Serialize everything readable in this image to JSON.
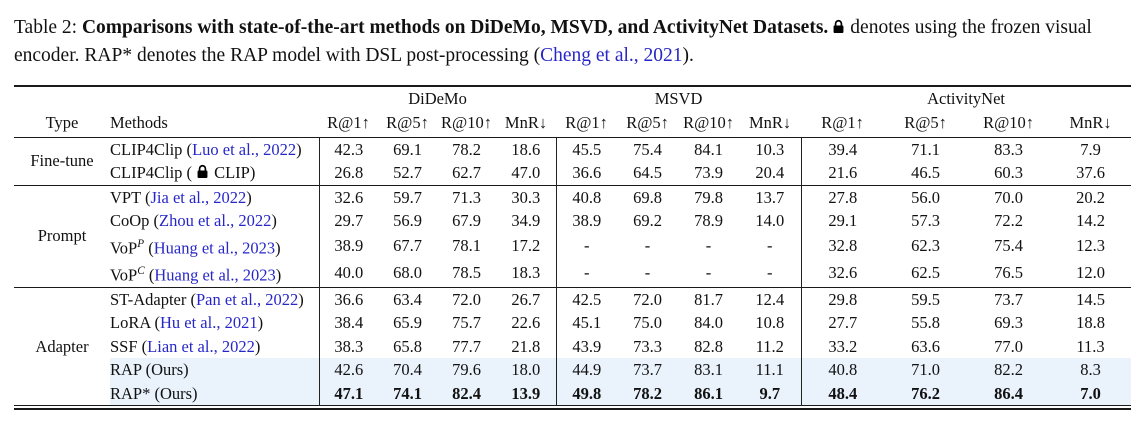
{
  "colors": {
    "citation": "#2727c8",
    "highlight_row": "#eaf2fc",
    "rule": "#1a1a1a",
    "text": "#111111"
  },
  "caption": {
    "segments": [
      {
        "t": "text",
        "v": "Table 2: "
      },
      {
        "t": "bold",
        "v": "Comparisons with state-of-the-art methods on DiDeMo, MSVD, and ActivityNet Datasets."
      },
      {
        "t": "lock"
      },
      {
        "t": "text",
        "v": "denotes using the frozen visual encoder. RAP* denotes the RAP model with DSL post-processing ("
      },
      {
        "t": "cite",
        "v": "Cheng et al., 2021"
      },
      {
        "t": "text",
        "v": ")."
      }
    ]
  },
  "table": {
    "datasets": [
      "DiDeMo",
      "MSVD",
      "ActivityNet"
    ],
    "col_type": "Type",
    "col_methods": "Methods",
    "metrics": [
      "R@1↑",
      "R@5↑",
      "R@10↑",
      "MnR↓",
      "R@1↑",
      "R@5↑",
      "R@10↑",
      "MnR↓",
      "R@1↑",
      "R@5↑",
      "R@10↑",
      "MnR↓"
    ],
    "groups": [
      {
        "type": "Fine-tune",
        "rows": [
          {
            "method": [
              {
                "t": "text",
                "v": "CLIP4Clip ("
              },
              {
                "t": "cite",
                "v": "Luo et al., 2022"
              },
              {
                "t": "text",
                "v": ")"
              }
            ],
            "values": [
              "42.3",
              "69.1",
              "78.2",
              "18.6",
              "45.5",
              "75.4",
              "84.1",
              "10.3",
              "39.4",
              "71.1",
              "83.3",
              "7.9"
            ]
          },
          {
            "method": [
              {
                "t": "text",
                "v": "CLIP4Clip ("
              },
              {
                "t": "lock"
              },
              {
                "t": "text",
                "v": "CLIP)"
              }
            ],
            "values": [
              "26.8",
              "52.7",
              "62.7",
              "47.0",
              "36.6",
              "64.5",
              "73.9",
              "20.4",
              "21.6",
              "46.5",
              "60.3",
              "37.6"
            ]
          }
        ]
      },
      {
        "type": "Prompt",
        "rows": [
          {
            "method": [
              {
                "t": "text",
                "v": "VPT ("
              },
              {
                "t": "cite",
                "v": "Jia et al., 2022"
              },
              {
                "t": "text",
                "v": ")"
              }
            ],
            "values": [
              "32.6",
              "59.7",
              "71.3",
              "30.3",
              "40.8",
              "69.8",
              "79.8",
              "13.7",
              "27.8",
              "56.0",
              "70.0",
              "20.2"
            ]
          },
          {
            "method": [
              {
                "t": "text",
                "v": "CoOp ("
              },
              {
                "t": "cite",
                "v": "Zhou et al., 2022"
              },
              {
                "t": "text",
                "v": ")"
              }
            ],
            "values": [
              "29.7",
              "56.9",
              "67.9",
              "34.9",
              "38.9",
              "69.2",
              "78.9",
              "14.0",
              "29.1",
              "57.3",
              "72.2",
              "14.2"
            ]
          },
          {
            "method": [
              {
                "t": "text",
                "v": "VoP"
              },
              {
                "t": "sup",
                "v": "P"
              },
              {
                "t": "text",
                "v": " ("
              },
              {
                "t": "cite",
                "v": "Huang et al., 2023"
              },
              {
                "t": "text",
                "v": ")"
              }
            ],
            "values": [
              "38.9",
              "67.7",
              "78.1",
              "17.2",
              "-",
              "-",
              "-",
              "-",
              "32.8",
              "62.3",
              "75.4",
              "12.3"
            ]
          },
          {
            "method": [
              {
                "t": "text",
                "v": "VoP"
              },
              {
                "t": "sup",
                "v": "C"
              },
              {
                "t": "text",
                "v": " ("
              },
              {
                "t": "cite",
                "v": "Huang et al., 2023"
              },
              {
                "t": "text",
                "v": ")"
              }
            ],
            "values": [
              "40.0",
              "68.0",
              "78.5",
              "18.3",
              "-",
              "-",
              "-",
              "-",
              "32.6",
              "62.5",
              "76.5",
              "12.0"
            ]
          }
        ]
      },
      {
        "type": "Adapter",
        "rows": [
          {
            "method": [
              {
                "t": "text",
                "v": "ST-Adapter ("
              },
              {
                "t": "cite",
                "v": "Pan et al., 2022"
              },
              {
                "t": "text",
                "v": ")"
              }
            ],
            "values": [
              "36.6",
              "63.4",
              "72.0",
              "26.7",
              "42.5",
              "72.0",
              "81.7",
              "12.4",
              "29.8",
              "59.5",
              "73.7",
              "14.5"
            ]
          },
          {
            "method": [
              {
                "t": "text",
                "v": "LoRA ("
              },
              {
                "t": "cite",
                "v": "Hu et al., 2021"
              },
              {
                "t": "text",
                "v": ")"
              }
            ],
            "values": [
              "38.4",
              "65.9",
              "75.7",
              "22.6",
              "45.1",
              "75.0",
              "84.0",
              "10.8",
              "27.7",
              "55.8",
              "69.3",
              "18.8"
            ]
          },
          {
            "method": [
              {
                "t": "text",
                "v": "SSF ("
              },
              {
                "t": "cite",
                "v": "Lian et al., 2022"
              },
              {
                "t": "text",
                "v": ")"
              }
            ],
            "values": [
              "38.3",
              "65.8",
              "77.7",
              "21.8",
              "43.9",
              "73.3",
              "82.8",
              "11.2",
              "33.2",
              "63.6",
              "77.0",
              "11.3"
            ]
          },
          {
            "method": [
              {
                "t": "text",
                "v": "RAP (Ours)"
              }
            ],
            "highlight": true,
            "values": [
              "42.6",
              "70.4",
              "79.6",
              "18.0",
              "44.9",
              "73.7",
              "83.1",
              "11.1",
              "40.8",
              "71.0",
              "82.2",
              "8.3"
            ]
          },
          {
            "method": [
              {
                "t": "text",
                "v": "RAP* (Ours)"
              }
            ],
            "highlight": true,
            "bold": true,
            "values": [
              "47.1",
              "74.1",
              "82.4",
              "13.9",
              "49.8",
              "78.2",
              "86.1",
              "9.7",
              "48.4",
              "76.2",
              "86.4",
              "7.0"
            ]
          }
        ]
      }
    ]
  }
}
